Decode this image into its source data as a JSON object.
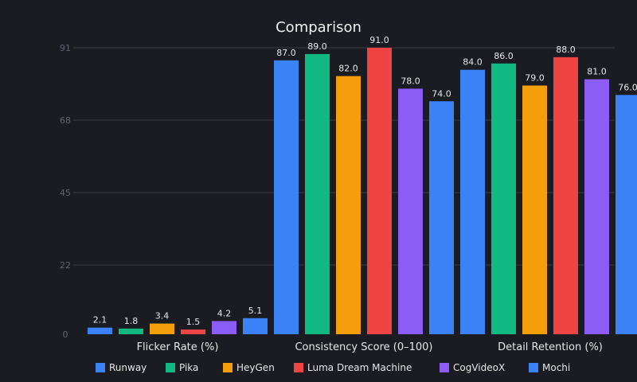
{
  "chart_data": {
    "type": "bar",
    "title": "Comparison",
    "categories": [
      "Flicker Rate (%)",
      "Consistency Score (0–100)",
      "Detail Retention (%)"
    ],
    "series": [
      {
        "name": "Runway",
        "color": "#3b82f6",
        "values": [
          2.1,
          87.0,
          84.0
        ]
      },
      {
        "name": "Pika",
        "color": "#10b981",
        "values": [
          1.8,
          89.0,
          86.0
        ]
      },
      {
        "name": "HeyGen",
        "color": "#f59e0b",
        "values": [
          3.4,
          82.0,
          79.0
        ]
      },
      {
        "name": "Luma Dream Machine",
        "color": "#ef4444",
        "values": [
          1.5,
          91.0,
          88.0
        ]
      },
      {
        "name": "CogVideoX",
        "color": "#8b5cf6",
        "values": [
          4.2,
          78.0,
          81.0
        ]
      },
      {
        "name": "Mochi",
        "color": "#3b82f6",
        "values": [
          5.1,
          74.0,
          76.0
        ]
      }
    ],
    "y_ticks": [
      0,
      22,
      45,
      68,
      91
    ],
    "ylim": [
      0,
      91
    ],
    "grid": true,
    "legend_position": "bottom"
  }
}
